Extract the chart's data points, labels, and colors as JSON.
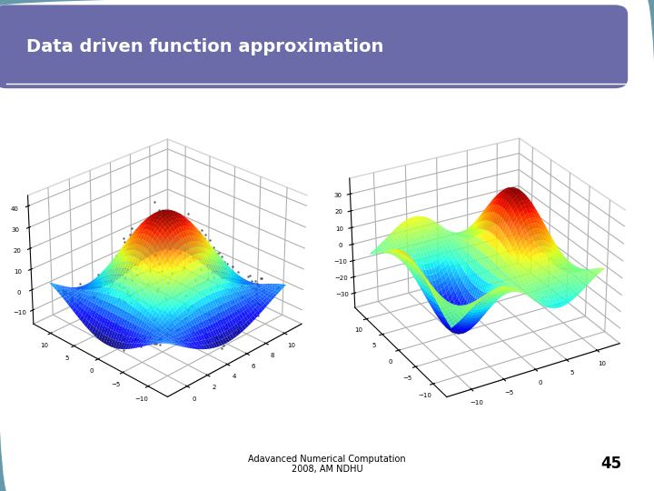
{
  "title": "Data driven function approximation",
  "title_bg_color": "#6B6BAA",
  "title_text_color": "#ffffff",
  "frame_color": "#6699AA",
  "bg_color": "#ffffff",
  "footer_text": "Adavanced Numerical Computation\n2008, AM NDHU",
  "footer_page": "45",
  "colormap": "jet",
  "elev1": 28,
  "azim1": -135,
  "elev2": 28,
  "azim2": -120,
  "xlim": [
    -1,
    12
  ],
  "ylim": [
    -12,
    12
  ],
  "n_scatter": 300,
  "noise_std": 2.0
}
